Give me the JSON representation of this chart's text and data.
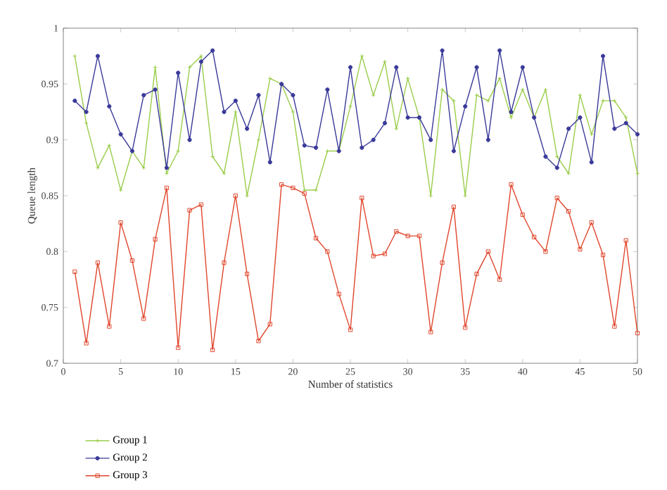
{
  "chart_data": {
    "type": "line",
    "xlabel": "Number of statistics",
    "ylabel": "Queue length",
    "x": [
      1,
      2,
      3,
      4,
      5,
      6,
      7,
      8,
      9,
      10,
      11,
      12,
      13,
      14,
      15,
      16,
      17,
      18,
      19,
      20,
      21,
      22,
      23,
      24,
      25,
      26,
      27,
      28,
      29,
      30,
      31,
      32,
      33,
      34,
      35,
      36,
      37,
      38,
      39,
      40,
      41,
      42,
      43,
      44,
      45,
      46,
      47,
      48,
      49,
      50
    ],
    "series": [
      {
        "name": "Group 1",
        "color": "#9acd4a",
        "marker": "cross",
        "values": [
          0.975,
          0.915,
          0.875,
          0.895,
          0.855,
          0.89,
          0.875,
          0.965,
          0.87,
          0.89,
          0.965,
          0.975,
          0.885,
          0.87,
          0.925,
          0.85,
          0.9,
          0.955,
          0.95,
          0.925,
          0.855,
          0.855,
          0.89,
          0.89,
          0.93,
          0.975,
          0.94,
          0.97,
          0.91,
          0.955,
          0.92,
          0.85,
          0.945,
          0.935,
          0.85,
          0.94,
          0.935,
          0.955,
          0.92,
          0.945,
          0.92,
          0.945,
          0.885,
          0.87,
          0.94,
          0.905,
          0.935,
          0.935,
          0.92,
          0.87
        ]
      },
      {
        "name": "Group 2",
        "color": "#3a3a9a",
        "marker": "circle",
        "values": [
          0.935,
          0.925,
          0.975,
          0.93,
          0.905,
          0.89,
          0.94,
          0.945,
          0.875,
          0.96,
          0.9,
          0.97,
          0.98,
          0.925,
          0.935,
          0.91,
          0.94,
          0.88,
          0.95,
          0.94,
          0.895,
          0.893,
          0.945,
          0.89,
          0.965,
          0.893,
          0.9,
          0.915,
          0.965,
          0.92,
          0.92,
          0.9,
          0.98,
          0.89,
          0.93,
          0.965,
          0.9,
          0.98,
          0.925,
          0.965,
          0.92,
          0.885,
          0.875,
          0.91,
          0.92,
          0.88,
          0.975,
          0.91,
          0.915,
          0.905
        ]
      },
      {
        "name": "Group 3",
        "color": "#e0462c",
        "marker": "square",
        "values": [
          0.782,
          0.718,
          0.79,
          0.733,
          0.826,
          0.792,
          0.74,
          0.811,
          0.857,
          0.714,
          0.837,
          0.842,
          0.712,
          0.79,
          0.85,
          0.78,
          0.72,
          0.735,
          0.86,
          0.857,
          0.852,
          0.812,
          0.8,
          0.762,
          0.73,
          0.848,
          0.796,
          0.798,
          0.818,
          0.814,
          0.814,
          0.728,
          0.79,
          0.84,
          0.732,
          0.78,
          0.8,
          0.775,
          0.86,
          0.833,
          0.813,
          0.8,
          0.848,
          0.836,
          0.802,
          0.826,
          0.797,
          0.733,
          0.81,
          0.727
        ]
      }
    ],
    "xlim": [
      0,
      50
    ],
    "ylim": [
      0.7,
      1
    ],
    "xticks": [
      0,
      5,
      10,
      15,
      20,
      25,
      30,
      35,
      40,
      45,
      50
    ],
    "yticks": [
      0.7,
      0.75,
      0.8,
      0.85,
      0.9,
      0.95,
      1
    ],
    "grid": false,
    "legend": "bottom left"
  }
}
